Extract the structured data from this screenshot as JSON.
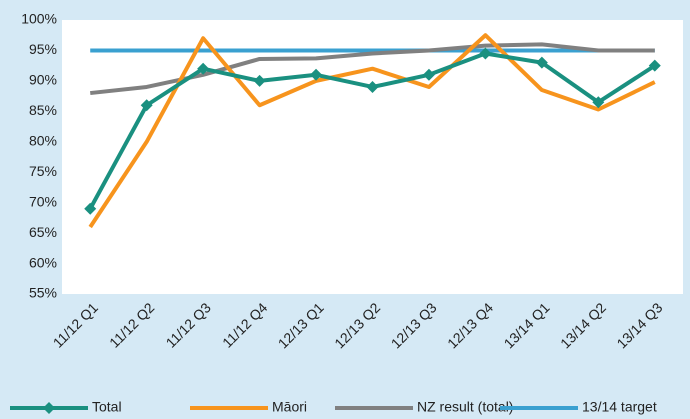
{
  "chart_data": {
    "type": "line",
    "categories": [
      "11/12 Q1",
      "11/12 Q2",
      "11/12 Q3",
      "11/12 Q4",
      "12/13 Q1",
      "12/13 Q2",
      "12/13 Q3",
      "12/13 Q4",
      "13/14 Q1",
      "13/14 Q2",
      "13/14 Q3"
    ],
    "series": [
      {
        "name": "Total",
        "color": "#1a9080",
        "marker": "diamond",
        "values": [
          69,
          86,
          92,
          90,
          91,
          89,
          91,
          94.5,
          93,
          86.5,
          92.5
        ]
      },
      {
        "name": "Māori",
        "color": "#f7941d",
        "values": [
          66,
          80,
          97,
          86,
          90,
          92,
          89,
          97.5,
          88.5,
          85.3,
          89.8
        ]
      },
      {
        "name": "NZ result (total)",
        "color": "#808080",
        "values": [
          88,
          89,
          91,
          93.6,
          93.7,
          94.5,
          95,
          95.8,
          96,
          95,
          95
        ]
      },
      {
        "name": "13/14 target",
        "color": "#3aa0d0",
        "values": [
          95,
          95,
          95,
          95,
          95,
          95,
          95,
          95,
          95,
          95,
          95
        ]
      }
    ],
    "ylim": [
      55,
      100
    ],
    "yticks": [
      {
        "value": 55,
        "label": "55%"
      },
      {
        "value": 60,
        "label": "60%"
      },
      {
        "value": 65,
        "label": "65%"
      },
      {
        "value": 70,
        "label": "70%"
      },
      {
        "value": 75,
        "label": "75%"
      },
      {
        "value": 80,
        "label": "80%"
      },
      {
        "value": 85,
        "label": "85%"
      },
      {
        "value": 90,
        "label": "90%"
      },
      {
        "value": 95,
        "label": "95%"
      },
      {
        "value": 100,
        "label": "100%"
      }
    ],
    "grid": false,
    "legend": "bottom"
  }
}
